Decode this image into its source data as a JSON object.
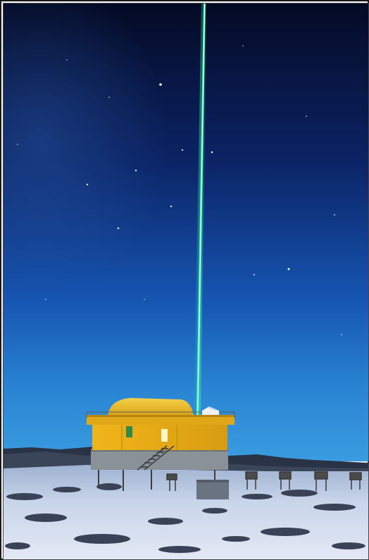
{
  "image": {
    "subject": "night-sky-laser-observatory",
    "colors": {
      "sky_top": "#050d2a",
      "sky_mid": "#0f3a8c",
      "sky_horizon": "#2f8fd8",
      "laser": "#3cf2a0",
      "building": "#e8b21c",
      "snow": "#cfd9ec"
    }
  }
}
